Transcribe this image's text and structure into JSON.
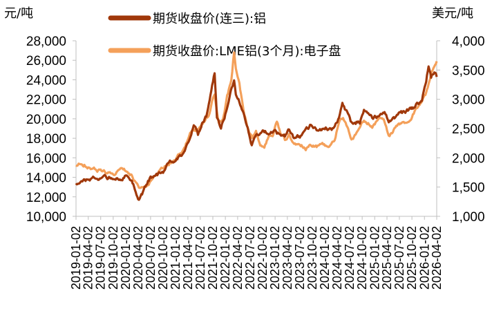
{
  "chart_data": {
    "type": "line",
    "left_unit": "元/吨",
    "right_unit": "美元/吨",
    "y_left_range": [
      10000,
      28000
    ],
    "y_right_range": [
      1000,
      4000
    ],
    "y_left_ticks": [
      "10,000",
      "12,000",
      "14,000",
      "16,000",
      "18,000",
      "20,000",
      "22,000",
      "24,000",
      "26,000",
      "28,000"
    ],
    "y_right_ticks": [
      "1,000",
      "1,500",
      "2,000",
      "2,500",
      "3,000",
      "3,500",
      "4,000"
    ],
    "x_tick_labels": [
      "2019-01-02",
      "2019-04-02",
      "2019-07-02",
      "2019-10-02",
      "2020-01-02",
      "2020-04-02",
      "2020-07-02",
      "2020-10-02",
      "2021-01-02",
      "2021-04-02",
      "2021-07-02",
      "2021-10-02",
      "2022-01-02",
      "2022-04-02",
      "2022-07-02",
      "2022-10-02",
      "2023-01-02",
      "2023-04-02",
      "2023-07-02",
      "2023-10-02",
      "2024-01-02",
      "2024-04-02",
      "2024-07-02",
      "2024-10-02",
      "2025-01-02",
      "2025-04-02",
      "2025-07-02",
      "2025-10-02",
      "2026-01-02",
      "2026-04-02"
    ],
    "grid": false,
    "legend_position": "top",
    "series": [
      {
        "name": "期货收盘价(连三):铝",
        "axis": "left",
        "color": "#A0380A",
        "points": [
          [
            "2019-01-02",
            13400
          ],
          [
            "2019-03-01",
            13600
          ],
          [
            "2019-05-01",
            13900
          ],
          [
            "2019-07-01",
            13900
          ],
          [
            "2019-09-01",
            14000
          ],
          [
            "2019-11-01",
            13900
          ],
          [
            "2020-01-02",
            14100
          ],
          [
            "2020-02-15",
            13600
          ],
          [
            "2020-03-15",
            12500
          ],
          [
            "2020-04-02",
            11600
          ],
          [
            "2020-05-01",
            12200
          ],
          [
            "2020-06-01",
            13300
          ],
          [
            "2020-07-02",
            14000
          ],
          [
            "2020-08-15",
            14300
          ],
          [
            "2020-10-02",
            14400
          ],
          [
            "2020-11-15",
            15600
          ],
          [
            "2021-01-02",
            15800
          ],
          [
            "2021-02-15",
            16200
          ],
          [
            "2021-04-02",
            17400
          ],
          [
            "2021-05-15",
            19600
          ],
          [
            "2021-06-15",
            18400
          ],
          [
            "2021-07-15",
            19600
          ],
          [
            "2021-08-15",
            20300
          ],
          [
            "2021-09-15",
            22500
          ],
          [
            "2021-10-15",
            24700
          ],
          [
            "2021-11-01",
            20000
          ],
          [
            "2021-12-01",
            19000
          ],
          [
            "2022-01-02",
            20500
          ],
          [
            "2022-02-01",
            22500
          ],
          [
            "2022-03-07",
            24000
          ],
          [
            "2022-03-20",
            22600
          ],
          [
            "2022-04-15",
            21800
          ],
          [
            "2022-05-15",
            20500
          ],
          [
            "2022-06-15",
            19000
          ],
          [
            "2022-07-15",
            17300
          ],
          [
            "2022-08-15",
            18500
          ],
          [
            "2022-09-15",
            18500
          ],
          [
            "2022-10-15",
            18600
          ],
          [
            "2022-11-15",
            18600
          ],
          [
            "2022-12-15",
            18800
          ],
          [
            "2023-01-15",
            18500
          ],
          [
            "2023-02-15",
            18200
          ],
          [
            "2023-03-15",
            18200
          ],
          [
            "2023-04-15",
            18900
          ],
          [
            "2023-05-15",
            18200
          ],
          [
            "2023-06-15",
            18300
          ],
          [
            "2023-07-15",
            18200
          ],
          [
            "2023-08-15",
            18600
          ],
          [
            "2023-09-15",
            19200
          ],
          [
            "2023-10-15",
            19000
          ],
          [
            "2023-11-15",
            18800
          ],
          [
            "2023-12-15",
            18800
          ],
          [
            "2024-01-15",
            19000
          ],
          [
            "2024-02-15",
            18800
          ],
          [
            "2024-03-15",
            19200
          ],
          [
            "2024-04-15",
            20200
          ],
          [
            "2024-05-10",
            21600
          ],
          [
            "2024-06-15",
            20500
          ],
          [
            "2024-07-15",
            19500
          ],
          [
            "2024-08-15",
            19600
          ],
          [
            "2024-09-15",
            19700
          ],
          [
            "2024-10-15",
            20800
          ],
          [
            "2024-11-15",
            20600
          ],
          [
            "2024-12-15",
            20000
          ],
          [
            "2025-01-15",
            20200
          ],
          [
            "2025-02-15",
            20600
          ],
          [
            "2025-03-15",
            20800
          ],
          [
            "2025-04-15",
            19700
          ],
          [
            "2025-05-15",
            20000
          ],
          [
            "2025-06-15",
            20300
          ],
          [
            "2025-07-15",
            20600
          ],
          [
            "2025-08-15",
            20700
          ],
          [
            "2025-09-15",
            20900
          ],
          [
            "2025-10-15",
            21100
          ],
          [
            "2025-11-15",
            21600
          ],
          [
            "2025-12-15",
            22000
          ],
          [
            "2026-01-15",
            24000
          ],
          [
            "2026-02-01",
            25600
          ],
          [
            "2026-02-20",
            24200
          ],
          [
            "2026-03-15",
            24800
          ],
          [
            "2026-04-02",
            24300
          ]
        ]
      },
      {
        "name": "期货收盘价:LME铝(3个月):电子盘",
        "axis": "right",
        "color": "#F4A05A",
        "points": [
          [
            "2019-01-02",
            1850
          ],
          [
            "2019-02-15",
            1900
          ],
          [
            "2019-04-02",
            1850
          ],
          [
            "2019-06-01",
            1790
          ],
          [
            "2019-08-01",
            1780
          ],
          [
            "2019-10-02",
            1740
          ],
          [
            "2019-12-01",
            1780
          ],
          [
            "2020-01-15",
            1790
          ],
          [
            "2020-03-01",
            1650
          ],
          [
            "2020-04-02",
            1480
          ],
          [
            "2020-05-15",
            1460
          ],
          [
            "2020-07-02",
            1600
          ],
          [
            "2020-09-01",
            1750
          ],
          [
            "2020-11-01",
            1900
          ],
          [
            "2021-01-02",
            1980
          ],
          [
            "2021-03-01",
            2150
          ],
          [
            "2021-05-01",
            2450
          ],
          [
            "2021-07-01",
            2500
          ],
          [
            "2021-09-01",
            2750
          ],
          [
            "2021-10-15",
            3100
          ],
          [
            "2021-11-15",
            2600
          ],
          [
            "2021-12-15",
            2650
          ],
          [
            "2022-01-15",
            3050
          ],
          [
            "2022-02-15",
            3300
          ],
          [
            "2022-03-07",
            3800
          ],
          [
            "2022-03-20",
            3500
          ],
          [
            "2022-04-15",
            3250
          ],
          [
            "2022-05-15",
            2800
          ],
          [
            "2022-06-15",
            2500
          ],
          [
            "2022-07-15",
            2350
          ],
          [
            "2022-08-15",
            2450
          ],
          [
            "2022-09-15",
            2250
          ],
          [
            "2022-10-15",
            2200
          ],
          [
            "2022-11-15",
            2380
          ],
          [
            "2022-12-15",
            2400
          ],
          [
            "2023-01-15",
            2600
          ],
          [
            "2023-02-15",
            2400
          ],
          [
            "2023-03-15",
            2300
          ],
          [
            "2023-04-15",
            2400
          ],
          [
            "2023-05-15",
            2250
          ],
          [
            "2023-06-15",
            2200
          ],
          [
            "2023-07-15",
            2200
          ],
          [
            "2023-08-15",
            2150
          ],
          [
            "2023-09-15",
            2250
          ],
          [
            "2023-10-15",
            2200
          ],
          [
            "2023-11-15",
            2200
          ],
          [
            "2023-12-15",
            2300
          ],
          [
            "2024-01-15",
            2200
          ],
          [
            "2024-02-15",
            2200
          ],
          [
            "2024-03-15",
            2300
          ],
          [
            "2024-04-15",
            2600
          ],
          [
            "2024-05-15",
            2700
          ],
          [
            "2024-06-15",
            2500
          ],
          [
            "2024-07-15",
            2300
          ],
          [
            "2024-08-15",
            2400
          ],
          [
            "2024-09-15",
            2500
          ],
          [
            "2024-10-15",
            2650
          ],
          [
            "2024-11-15",
            2600
          ],
          [
            "2024-12-15",
            2550
          ],
          [
            "2025-01-15",
            2600
          ],
          [
            "2025-02-15",
            2650
          ],
          [
            "2025-03-15",
            2600
          ],
          [
            "2025-04-15",
            2350
          ],
          [
            "2025-05-15",
            2450
          ],
          [
            "2025-06-15",
            2550
          ],
          [
            "2025-07-15",
            2600
          ],
          [
            "2025-08-15",
            2600
          ],
          [
            "2025-09-15",
            2650
          ],
          [
            "2025-10-15",
            2780
          ],
          [
            "2025-11-15",
            2850
          ],
          [
            "2025-12-15",
            2950
          ],
          [
            "2026-01-15",
            3100
          ],
          [
            "2026-02-01",
            3250
          ],
          [
            "2026-02-20",
            3450
          ],
          [
            "2026-03-15",
            3550
          ],
          [
            "2026-04-02",
            3650
          ]
        ]
      }
    ]
  }
}
